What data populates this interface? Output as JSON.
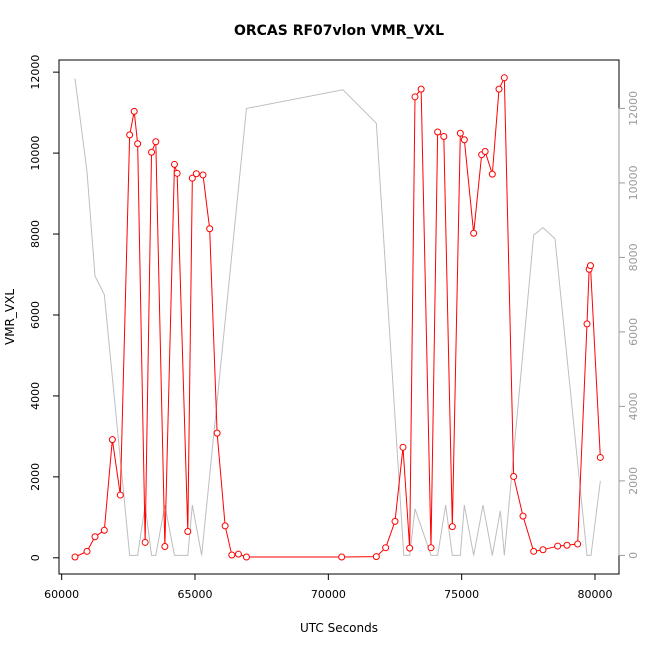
{
  "chart_data": {
    "type": "line",
    "title": "ORCAS RF07vlon VMR_VXL",
    "xlabel": "UTC Seconds",
    "ylabel": "VMR_VXL",
    "xlim": [
      59900,
      80900
    ],
    "ylim": [
      -400,
      12300
    ],
    "y2lim": [
      -500,
      13300
    ],
    "xticks": [
      60000,
      65000,
      70000,
      75000,
      80000
    ],
    "yticks": [
      0,
      2000,
      4000,
      6000,
      8000,
      10000,
      12000
    ],
    "y2ticks": [
      0,
      2000,
      4000,
      6000,
      8000,
      10000,
      12000
    ],
    "grid": false,
    "series": [
      {
        "name": "VMR_VXL",
        "color": "#ff0000",
        "marker": "circle",
        "x": [
          60500,
          60950,
          61250,
          61600,
          61900,
          62200,
          62550,
          62720,
          62850,
          63130,
          63370,
          63530,
          63870,
          64230,
          64330,
          64730,
          64900,
          65050,
          65300,
          65550,
          65830,
          66130,
          66380,
          66630,
          66930,
          70500,
          71800,
          72150,
          72500,
          72800,
          73050,
          73250,
          73480,
          73850,
          74100,
          74330,
          74650,
          74950,
          75100,
          75450,
          75750,
          75880,
          76150,
          76400,
          76600,
          76950,
          77300,
          77700,
          78050,
          78600,
          78950,
          79350,
          79700,
          79780,
          79830,
          80200
        ],
        "values": [
          20,
          160,
          520,
          680,
          2920,
          1550,
          10450,
          11030,
          10230,
          380,
          10020,
          10280,
          280,
          9720,
          9500,
          650,
          9380,
          9490,
          9460,
          8130,
          3080,
          790,
          70,
          90,
          20,
          20,
          30,
          250,
          900,
          2730,
          240,
          11390,
          11580,
          250,
          10520,
          10410,
          770,
          10490,
          10330,
          8020,
          9960,
          10040,
          9480,
          11580,
          11860,
          2010,
          1030,
          160,
          200,
          290,
          310,
          340,
          5780,
          7130,
          7220,
          2480
        ]
      },
      {
        "name": "vlon",
        "color": "#bebebe",
        "marker": "none",
        "axis": "right",
        "x": [
          60500,
          60950,
          61250,
          61600,
          62550,
          62850,
          63130,
          63370,
          63530,
          63870,
          64230,
          64730,
          64900,
          65250,
          66930,
          70550,
          71800,
          72830,
          73050,
          73250,
          73850,
          74100,
          74400,
          74650,
          74950,
          75100,
          75450,
          75800,
          76150,
          76450,
          76600,
          77700,
          78050,
          78500,
          79700,
          79850,
          80200
        ],
        "values": [
          12800,
          10300,
          7500,
          7000,
          0,
          0,
          1350,
          0,
          0,
          1350,
          0,
          0,
          1350,
          0,
          12000,
          12500,
          11600,
          0,
          0,
          1250,
          0,
          0,
          1350,
          0,
          0,
          1350,
          0,
          1350,
          0,
          1200,
          0,
          8600,
          8800,
          8500,
          0,
          0,
          2000
        ]
      }
    ]
  }
}
